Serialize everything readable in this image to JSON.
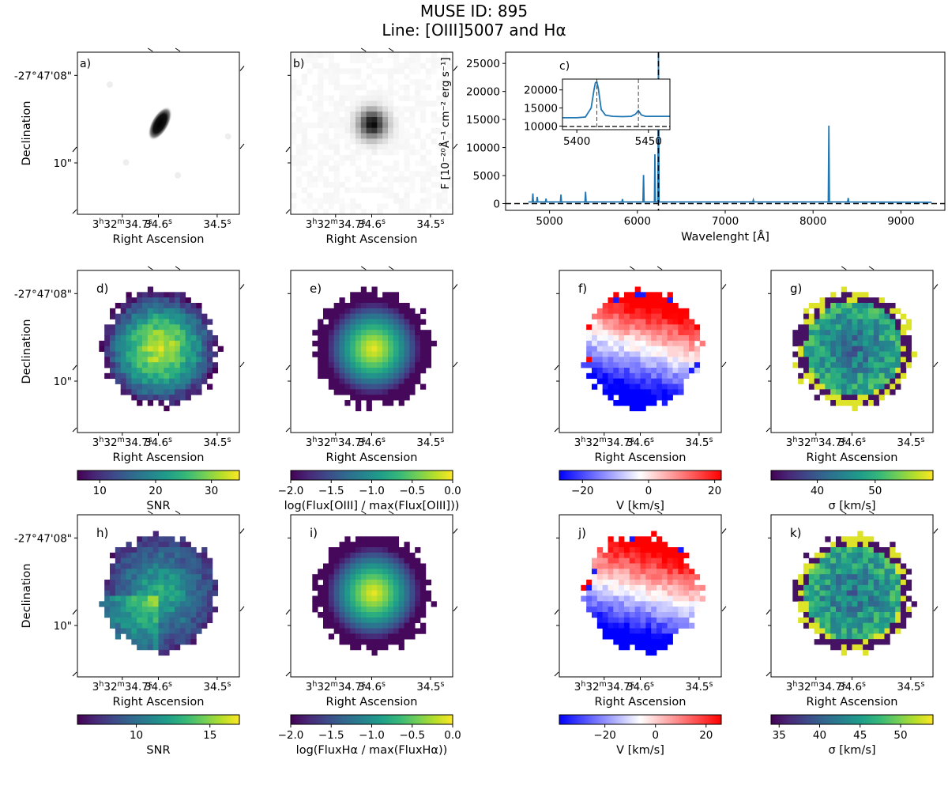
{
  "figure": {
    "title_line1": "MUSE ID: 895",
    "title_line2": "Line: [OIII]5007 and Hα"
  },
  "axes_text": {
    "ra_label": "Right Ascension",
    "dec_label": "Declination",
    "ra_ticks": [
      "3h32m34.7s",
      "34.6s",
      "34.5s"
    ],
    "dec_ticks": [
      "-27°47'08\"",
      "10\""
    ]
  },
  "colors": {
    "spectrum": "#1f77b4",
    "axis": "#000000"
  },
  "colormaps": {
    "viridis": [
      "#440154",
      "#482878",
      "#3e4989",
      "#31688e",
      "#26828e",
      "#1f9e89",
      "#35b779",
      "#6ece58",
      "#b5de2b",
      "#fde725"
    ],
    "bwr": [
      "#0000ff",
      "#ffffff",
      "#ff0000"
    ],
    "greys": [
      "#ffffff",
      "#000000"
    ]
  },
  "chart_data": [
    {
      "panel": "a",
      "type": "heatmap",
      "label": "a)",
      "content": "white-light image",
      "cmap": "greys",
      "xlabel": "Right Ascension",
      "ylabel": "Declination"
    },
    {
      "panel": "b",
      "type": "heatmap",
      "label": "b)",
      "content": "narrow-band image",
      "cmap": "greys",
      "xlabel": "Right Ascension"
    },
    {
      "panel": "c",
      "type": "line",
      "label": "c)",
      "xlabel": "Wavelenght [Å]",
      "ylabel": "F [10⁻²⁰Å⁻¹ cm⁻² erg s⁻¹]",
      "xlim": [
        4500,
        9500
      ],
      "ylim": [
        -1200,
        27000
      ],
      "xticks": [
        5000,
        6000,
        7000,
        8000,
        9000
      ],
      "yticks": [
        0,
        5000,
        10000,
        15000,
        20000,
        25000
      ],
      "baseline": 0,
      "marker_line": 6240,
      "continuum": 300,
      "peaks": [
        {
          "x": 4810,
          "y": 1800
        },
        {
          "x": 4860,
          "y": 1200
        },
        {
          "x": 4960,
          "y": 900
        },
        {
          "x": 5130,
          "y": 1600
        },
        {
          "x": 5410,
          "y": 2100
        },
        {
          "x": 5830,
          "y": 800
        },
        {
          "x": 6070,
          "y": 5100
        },
        {
          "x": 6200,
          "y": 8800
        },
        {
          "x": 6240,
          "y": 26800
        },
        {
          "x": 7320,
          "y": 650
        },
        {
          "x": 8180,
          "y": 13900
        },
        {
          "x": 8400,
          "y": 1000
        }
      ],
      "inset": {
        "xlim": [
          5390,
          5465
        ],
        "ylim": [
          9000,
          23000
        ],
        "xticks": [
          5400,
          5450
        ],
        "yticks": [
          10000,
          15000,
          20000
        ],
        "markers": [
          5414,
          5443
        ],
        "baseline": 9900,
        "x": [
          5390,
          5400,
          5406,
          5410,
          5412,
          5413,
          5414,
          5415,
          5417,
          5420,
          5425,
          5432,
          5438,
          5441,
          5443,
          5445,
          5448,
          5455,
          5465
        ],
        "y": [
          12300,
          12300,
          12500,
          15000,
          20000,
          22000,
          22200,
          20500,
          14600,
          13000,
          12700,
          12600,
          12700,
          13300,
          14300,
          13100,
          12700,
          12700,
          12700
        ]
      }
    },
    {
      "panel": "d",
      "type": "heatmap",
      "label": "d)",
      "cbar_label": "SNR",
      "cmap": "viridis",
      "cbar_range": [
        6,
        35
      ],
      "cbar_ticks": [
        10,
        20,
        30
      ]
    },
    {
      "panel": "e",
      "type": "heatmap",
      "label": "e)",
      "cbar_label": "log(Flux[OIII] / max(Flux[OIII]))",
      "cmap": "viridis",
      "cbar_range": [
        -2.0,
        0.0
      ],
      "cbar_ticks": [
        -2.0,
        -1.5,
        -1.0,
        -0.5,
        0.0
      ]
    },
    {
      "panel": "f",
      "type": "heatmap",
      "label": "f)",
      "cbar_label": "V [km/s]",
      "cmap": "bwr",
      "cbar_range": [
        -27,
        22
      ],
      "cbar_ticks": [
        -20,
        0,
        20
      ]
    },
    {
      "panel": "g",
      "type": "heatmap",
      "label": "g)",
      "cbar_label": "σ [km/s]",
      "cmap": "viridis",
      "cbar_range": [
        32,
        60
      ],
      "cbar_ticks": [
        40,
        50
      ]
    },
    {
      "panel": "h",
      "type": "heatmap",
      "label": "h)",
      "cbar_label": "SNR",
      "cmap": "viridis",
      "cbar_range": [
        6,
        17
      ],
      "cbar_ticks": [
        10,
        15
      ]
    },
    {
      "panel": "i",
      "type": "heatmap",
      "label": "i)",
      "cbar_label": "log(FluxHα / max(FluxHα))",
      "cmap": "viridis",
      "cbar_range": [
        -2.0,
        0.0
      ],
      "cbar_ticks": [
        -2.0,
        -1.5,
        -1.0,
        -0.5,
        0.0
      ]
    },
    {
      "panel": "j",
      "type": "heatmap",
      "label": "j)",
      "cbar_label": "V [km/s]",
      "cmap": "bwr",
      "cbar_range": [
        -38,
        26
      ],
      "cbar_ticks": [
        -20,
        0,
        20
      ]
    },
    {
      "panel": "k",
      "type": "heatmap",
      "label": "k)",
      "cbar_label": "σ [km/s]",
      "cmap": "viridis",
      "cbar_range": [
        34,
        54
      ],
      "cbar_ticks": [
        35,
        40,
        45,
        50
      ]
    }
  ]
}
